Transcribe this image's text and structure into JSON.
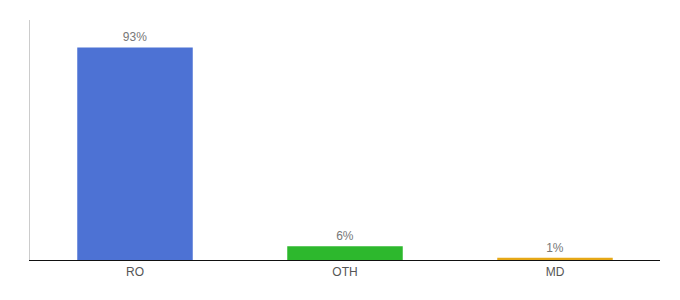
{
  "chart_data": {
    "type": "bar",
    "categories": [
      "RO",
      "OTH",
      "MD"
    ],
    "values": [
      93,
      6,
      1
    ],
    "colors": [
      "#4d72d4",
      "#2db82d",
      "#e6a817"
    ],
    "data_labels": true,
    "value_labels": [
      "93%",
      "6%",
      "1%"
    ],
    "ylim": [
      0,
      105
    ],
    "grid": false,
    "tick_labels": "x"
  }
}
